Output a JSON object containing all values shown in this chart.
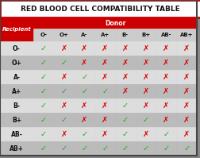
{
  "title": "RED BLOOD CELL COMPATIBILITY TABLE",
  "donor_label": "Donor",
  "recipient_label": "Recipient",
  "donors": [
    "O-",
    "O+",
    "A-",
    "A+",
    "B-",
    "B+",
    "AB-",
    "AB+"
  ],
  "recipients": [
    "O-",
    "O+",
    "A-",
    "A+",
    "B-",
    "B+",
    "AB-",
    "AB+"
  ],
  "compatibility": [
    [
      1,
      0,
      0,
      0,
      0,
      0,
      0,
      0
    ],
    [
      1,
      1,
      0,
      0,
      0,
      0,
      0,
      0
    ],
    [
      1,
      0,
      1,
      0,
      0,
      0,
      0,
      0
    ],
    [
      1,
      1,
      1,
      1,
      0,
      0,
      0,
      0
    ],
    [
      1,
      0,
      0,
      0,
      1,
      0,
      0,
      0
    ],
    [
      1,
      1,
      0,
      0,
      1,
      1,
      0,
      0
    ],
    [
      1,
      0,
      1,
      0,
      1,
      0,
      1,
      0
    ],
    [
      1,
      1,
      1,
      1,
      1,
      1,
      1,
      1
    ]
  ],
  "title_bg": "#ffffff",
  "title_color": "#111111",
  "title_border": "#cc0000",
  "donor_bar_bg": "#cc0000",
  "donor_bar_color": "#ffffff",
  "recipient_bg": "#cc0000",
  "recipient_color": "#ffffff",
  "header_bg": "#cccccc",
  "row_bg_light": "#dddddd",
  "row_bg_dark": "#bbbbbb",
  "check_color": "#22aa22",
  "cross_color": "#dd0000",
  "grid_color": "#888888",
  "outer_bg": "#888888",
  "watermark_color": "#999999"
}
